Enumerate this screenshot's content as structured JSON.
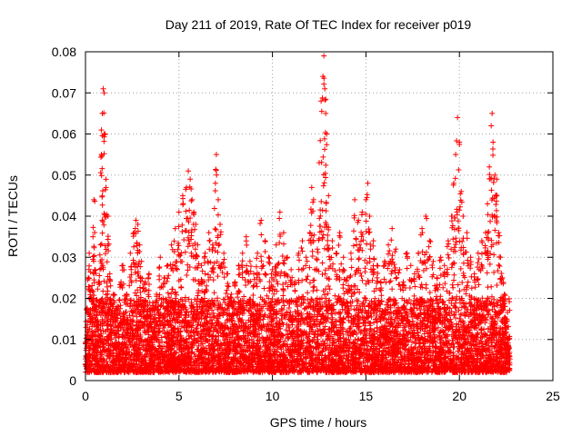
{
  "chart_data": {
    "type": "scatter",
    "title": "Day 211 of 2019, Rate Of TEC Index for receiver p019",
    "xlabel": "GPS time / hours",
    "ylabel": "ROTI / TECUs",
    "xlim": [
      0,
      25
    ],
    "ylim": [
      0,
      0.08
    ],
    "grid": true,
    "marker": "+",
    "x_ticks": [
      {
        "value": 0,
        "label": "0"
      },
      {
        "value": 5,
        "label": "5"
      },
      {
        "value": 10,
        "label": "10"
      },
      {
        "value": 15,
        "label": "15"
      },
      {
        "value": 20,
        "label": "20"
      },
      {
        "value": 25,
        "label": "25"
      }
    ],
    "y_ticks": [
      {
        "value": 0,
        "label": "0"
      },
      {
        "value": 0.01,
        "label": "0.01"
      },
      {
        "value": 0.02,
        "label": "0.02"
      },
      {
        "value": 0.03,
        "label": "0.03"
      },
      {
        "value": 0.04,
        "label": "0.04"
      },
      {
        "value": 0.05,
        "label": "0.05"
      },
      {
        "value": 0.06,
        "label": "0.06"
      },
      {
        "value": 0.07,
        "label": "0.07"
      },
      {
        "value": 0.08,
        "label": "0.08"
      }
    ],
    "series": [
      {
        "name": "ROTI",
        "color": "#ff0000",
        "points": [
          [
            0.05,
            0.006
          ],
          [
            0.1,
            0.012
          ],
          [
            0.15,
            0.025
          ],
          [
            0.2,
            0.031
          ],
          [
            0.3,
            0.022
          ],
          [
            0.4,
            0.035
          ],
          [
            0.45,
            0.044
          ],
          [
            0.5,
            0.027
          ],
          [
            0.6,
            0.018
          ],
          [
            0.7,
            0.024
          ],
          [
            0.8,
            0.033
          ],
          [
            0.85,
            0.055
          ],
          [
            0.9,
            0.065
          ],
          [
            0.95,
            0.071
          ],
          [
            1.0,
            0.07
          ],
          [
            1.05,
            0.06
          ],
          [
            1.1,
            0.047
          ],
          [
            1.2,
            0.04
          ],
          [
            1.3,
            0.026
          ],
          [
            1.5,
            0.021
          ],
          [
            1.7,
            0.018
          ],
          [
            1.9,
            0.024
          ],
          [
            2.0,
            0.028
          ],
          [
            2.2,
            0.021
          ],
          [
            2.4,
            0.031
          ],
          [
            2.6,
            0.036
          ],
          [
            2.7,
            0.039
          ],
          [
            2.8,
            0.038
          ],
          [
            2.9,
            0.033
          ],
          [
            3.0,
            0.029
          ],
          [
            3.2,
            0.024
          ],
          [
            3.4,
            0.026
          ],
          [
            3.6,
            0.019
          ],
          [
            3.8,
            0.021
          ],
          [
            4.0,
            0.03
          ],
          [
            4.2,
            0.025
          ],
          [
            4.4,
            0.028
          ],
          [
            4.6,
            0.033
          ],
          [
            4.8,
            0.037
          ],
          [
            5.0,
            0.041
          ],
          [
            5.2,
            0.045
          ],
          [
            5.4,
            0.047
          ],
          [
            5.5,
            0.051
          ],
          [
            5.6,
            0.049
          ],
          [
            5.7,
            0.044
          ],
          [
            5.8,
            0.041
          ],
          [
            5.9,
            0.038
          ],
          [
            6.0,
            0.033
          ],
          [
            6.2,
            0.028
          ],
          [
            6.4,
            0.031
          ],
          [
            6.6,
            0.036
          ],
          [
            6.8,
            0.033
          ],
          [
            6.95,
            0.048
          ],
          [
            7.0,
            0.055
          ],
          [
            7.1,
            0.044
          ],
          [
            7.2,
            0.038
          ],
          [
            7.4,
            0.031
          ],
          [
            7.6,
            0.026
          ],
          [
            7.8,
            0.021
          ],
          [
            8.0,
            0.024
          ],
          [
            8.2,
            0.028
          ],
          [
            8.4,
            0.031
          ],
          [
            8.6,
            0.035
          ],
          [
            8.8,
            0.029
          ],
          [
            9.0,
            0.026
          ],
          [
            9.2,
            0.031
          ],
          [
            9.4,
            0.039
          ],
          [
            9.6,
            0.034
          ],
          [
            9.8,
            0.03
          ],
          [
            10.0,
            0.027
          ],
          [
            10.2,
            0.033
          ],
          [
            10.4,
            0.041
          ],
          [
            10.6,
            0.036
          ],
          [
            10.8,
            0.03
          ],
          [
            11.0,
            0.027
          ],
          [
            11.2,
            0.024
          ],
          [
            11.4,
            0.031
          ],
          [
            11.6,
            0.034
          ],
          [
            11.8,
            0.03
          ],
          [
            12.0,
            0.036
          ],
          [
            12.1,
            0.047
          ],
          [
            12.2,
            0.044
          ],
          [
            12.4,
            0.032
          ],
          [
            12.5,
            0.053
          ],
          [
            12.6,
            0.068
          ],
          [
            12.7,
            0.074
          ],
          [
            12.75,
            0.079
          ],
          [
            12.8,
            0.071
          ],
          [
            12.85,
            0.065
          ],
          [
            12.9,
            0.06
          ],
          [
            13.0,
            0.045
          ],
          [
            13.2,
            0.034
          ],
          [
            13.4,
            0.031
          ],
          [
            13.6,
            0.036
          ],
          [
            13.8,
            0.03
          ],
          [
            14.0,
            0.025
          ],
          [
            14.2,
            0.031
          ],
          [
            14.4,
            0.044
          ],
          [
            14.6,
            0.039
          ],
          [
            14.8,
            0.041
          ],
          [
            15.0,
            0.044
          ],
          [
            15.1,
            0.048
          ],
          [
            15.2,
            0.04
          ],
          [
            15.4,
            0.034
          ],
          [
            15.6,
            0.028
          ],
          [
            15.8,
            0.024
          ],
          [
            16.0,
            0.029
          ],
          [
            16.2,
            0.033
          ],
          [
            16.4,
            0.037
          ],
          [
            16.6,
            0.032
          ],
          [
            16.8,
            0.027
          ],
          [
            17.0,
            0.024
          ],
          [
            17.2,
            0.031
          ],
          [
            17.4,
            0.028
          ],
          [
            17.6,
            0.026
          ],
          [
            17.8,
            0.031
          ],
          [
            18.0,
            0.037
          ],
          [
            18.2,
            0.04
          ],
          [
            18.4,
            0.034
          ],
          [
            18.6,
            0.029
          ],
          [
            18.8,
            0.025
          ],
          [
            19.0,
            0.03
          ],
          [
            19.2,
            0.028
          ],
          [
            19.4,
            0.034
          ],
          [
            19.6,
            0.04
          ],
          [
            19.7,
            0.048
          ],
          [
            19.8,
            0.055
          ],
          [
            19.9,
            0.064
          ],
          [
            20.0,
            0.058
          ],
          [
            20.1,
            0.046
          ],
          [
            20.2,
            0.04
          ],
          [
            20.4,
            0.036
          ],
          [
            20.6,
            0.03
          ],
          [
            20.8,
            0.026
          ],
          [
            21.0,
            0.031
          ],
          [
            21.2,
            0.034
          ],
          [
            21.4,
            0.036
          ],
          [
            21.5,
            0.043
          ],
          [
            21.6,
            0.052
          ],
          [
            21.7,
            0.062
          ],
          [
            21.75,
            0.065
          ],
          [
            21.8,
            0.058
          ],
          [
            21.9,
            0.05
          ],
          [
            22.0,
            0.049
          ],
          [
            22.1,
            0.036
          ],
          [
            22.2,
            0.03
          ],
          [
            22.3,
            0.025
          ],
          [
            22.4,
            0.021
          ],
          [
            22.5,
            0.015
          ],
          [
            22.6,
            0.01
          ]
        ]
      }
    ],
    "background_density": {
      "description": "dense band of points between 0.002 and 0.02 across 0 to 22.7 hours",
      "x_range": [
        0,
        22.7
      ],
      "y_floor": 0.002,
      "y_typical_max": 0.02,
      "count": 7000
    }
  }
}
